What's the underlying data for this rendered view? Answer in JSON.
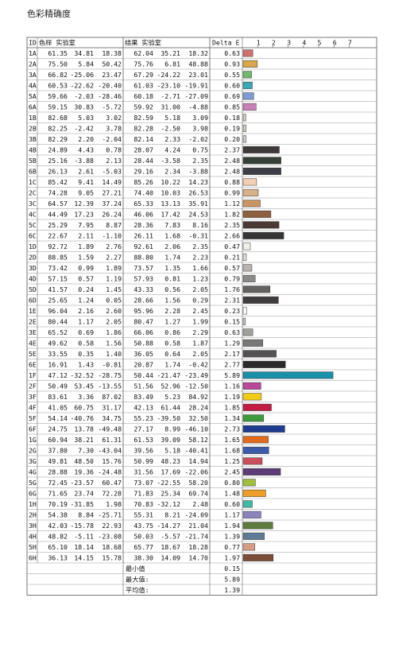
{
  "title": "色彩精确度",
  "table": {
    "col_id": "ID",
    "col_sample": "色样 实验室",
    "col_result": "结果 实验室",
    "col_delta": "Delta E",
    "footer": [
      {
        "label": "最小值",
        "value": "0.15"
      },
      {
        "label": "最大值:",
        "value": "5.89"
      },
      {
        "label": "平均值:",
        "value": "1.39"
      }
    ]
  },
  "chart_data": {
    "type": "bar",
    "orientation": "horizontal",
    "title": "",
    "xlabel": "Delta E",
    "xlim": [
      0,
      7
    ],
    "xticks": [
      "1",
      "2",
      "3",
      "4",
      "5",
      "6",
      "7"
    ],
    "rows": [
      {
        "id": "1A",
        "sample": [
          "61.35",
          "34.81",
          "18.38"
        ],
        "result": [
          "62.04",
          "35.21",
          "18.32"
        ],
        "de": 0.63,
        "color": "#d0706e"
      },
      {
        "id": "2A",
        "sample": [
          "75.50",
          "5.84",
          "50.42"
        ],
        "result": [
          "75.76",
          "6.81",
          "48.88"
        ],
        "de": 0.93,
        "color": "#d8a64c"
      },
      {
        "id": "3A",
        "sample": [
          "66.82",
          "-25.06",
          "23.47"
        ],
        "result": [
          "67.29",
          "-24.22",
          "23.01"
        ],
        "de": 0.55,
        "color": "#73b86c"
      },
      {
        "id": "4A",
        "sample": [
          "60.53",
          "-22.62",
          "-20.40"
        ],
        "result": [
          "61.03",
          "-23.10",
          "-19.91"
        ],
        "de": 0.6,
        "color": "#3aa7b5"
      },
      {
        "id": "5A",
        "sample": [
          "59.66",
          "-2.03",
          "-28.46"
        ],
        "result": [
          "60.18",
          "-2.71",
          "-27.09"
        ],
        "de": 0.69,
        "color": "#7f9bd4"
      },
      {
        "id": "6A",
        "sample": [
          "59.15",
          "30.83",
          "-5.72"
        ],
        "result": [
          "59.92",
          "31.00",
          "-4.88"
        ],
        "de": 0.85,
        "color": "#c97fb7"
      },
      {
        "id": "1B",
        "sample": [
          "82.68",
          "5.03",
          "3.02"
        ],
        "result": [
          "82.59",
          "5.18",
          "3.09"
        ],
        "de": 0.18,
        "color": "#d4cfc9"
      },
      {
        "id": "2B",
        "sample": [
          "82.25",
          "-2.42",
          "3.78"
        ],
        "result": [
          "82.28",
          "-2.50",
          "3.98"
        ],
        "de": 0.19,
        "color": "#cfd1c6"
      },
      {
        "id": "3B",
        "sample": [
          "82.29",
          "2.20",
          "-2.04"
        ],
        "result": [
          "82.14",
          "2.33",
          "-2.02"
        ],
        "de": 0.2,
        "color": "#d2cfd2"
      },
      {
        "id": "4B",
        "sample": [
          "24.89",
          "4.43",
          "0.78"
        ],
        "result": [
          "28.07",
          "4.24",
          "0.75"
        ],
        "de": 2.37,
        "color": "#3e3a3a"
      },
      {
        "id": "5B",
        "sample": [
          "25.16",
          "-3.88",
          "2.13"
        ],
        "result": [
          "28.44",
          "-3.58",
          "2.35"
        ],
        "de": 2.48,
        "color": "#364039"
      },
      {
        "id": "6B",
        "sample": [
          "26.13",
          "2.61",
          "-5.03"
        ],
        "result": [
          "29.16",
          "2.34",
          "-3.88"
        ],
        "de": 2.48,
        "color": "#3c3d46"
      },
      {
        "id": "1C",
        "sample": [
          "85.42",
          "9.41",
          "14.49"
        ],
        "result": [
          "85.26",
          "10.22",
          "14.23"
        ],
        "de": 0.88,
        "color": "#f3cfb5"
      },
      {
        "id": "2C",
        "sample": [
          "74.28",
          "9.05",
          "27.21"
        ],
        "result": [
          "74.40",
          "10.03",
          "26.53"
        ],
        "de": 0.99,
        "color": "#d8b089"
      },
      {
        "id": "3C",
        "sample": [
          "64.57",
          "12.39",
          "37.24"
        ],
        "result": [
          "65.33",
          "13.13",
          "35.91"
        ],
        "de": 1.12,
        "color": "#c99563"
      },
      {
        "id": "4C",
        "sample": [
          "44.49",
          "17.23",
          "26.24"
        ],
        "result": [
          "46.06",
          "17.42",
          "24.53"
        ],
        "de": 1.82,
        "color": "#8f6040"
      },
      {
        "id": "5C",
        "sample": [
          "25.29",
          "7.95",
          "8.87"
        ],
        "result": [
          "28.36",
          "7.83",
          "8.16"
        ],
        "de": 2.35,
        "color": "#4b3933"
      },
      {
        "id": "6C",
        "sample": [
          "22.67",
          "2.11",
          "-1.10"
        ],
        "result": [
          "26.11",
          "1.68",
          "-0.31"
        ],
        "de": 2.66,
        "color": "#353535"
      },
      {
        "id": "1D",
        "sample": [
          "92.72",
          "1.89",
          "2.76"
        ],
        "result": [
          "92.61",
          "2.06",
          "2.35"
        ],
        "de": 0.47,
        "color": "#f2f0ea"
      },
      {
        "id": "2D",
        "sample": [
          "88.85",
          "1.59",
          "2.27"
        ],
        "result": [
          "88.80",
          "1.74",
          "2.23"
        ],
        "de": 0.21,
        "color": "#e2dfda"
      },
      {
        "id": "3D",
        "sample": [
          "73.42",
          "0.99",
          "1.89"
        ],
        "result": [
          "73.57",
          "1.35",
          "1.66"
        ],
        "de": 0.57,
        "color": "#b8b5b1"
      },
      {
        "id": "4D",
        "sample": [
          "57.15",
          "0.57",
          "1.19"
        ],
        "result": [
          "57.93",
          "0.81",
          "1.23"
        ],
        "de": 0.79,
        "color": "#8c8a88"
      },
      {
        "id": "5D",
        "sample": [
          "41.57",
          "0.24",
          "1.45"
        ],
        "result": [
          "43.33",
          "0.56",
          "2.05"
        ],
        "de": 1.76,
        "color": "#646260"
      },
      {
        "id": "6D",
        "sample": [
          "25.65",
          "1.24",
          "0.05"
        ],
        "result": [
          "28.66",
          "1.56",
          "0.29"
        ],
        "de": 2.31,
        "color": "#3f3d3d"
      },
      {
        "id": "1E",
        "sample": [
          "96.04",
          "2.16",
          "2.60"
        ],
        "result": [
          "95.96",
          "2.28",
          "2.45"
        ],
        "de": 0.23,
        "color": "#fbf9f6"
      },
      {
        "id": "2E",
        "sample": [
          "80.44",
          "1.17",
          "2.05"
        ],
        "result": [
          "80.47",
          "1.27",
          "1.99"
        ],
        "de": 0.15,
        "color": "#cbc8c5"
      },
      {
        "id": "3E",
        "sample": [
          "65.52",
          "0.69",
          "1.86"
        ],
        "result": [
          "66.06",
          "0.86",
          "2.29"
        ],
        "de": 0.63,
        "color": "#a2a09d"
      },
      {
        "id": "4E",
        "sample": [
          "49.62",
          "0.58",
          "1.56"
        ],
        "result": [
          "50.88",
          "0.58",
          "1.87"
        ],
        "de": 1.29,
        "color": "#7a7876"
      },
      {
        "id": "5E",
        "sample": [
          "33.55",
          "0.35",
          "1.40"
        ],
        "result": [
          "36.05",
          "0.64",
          "2.05"
        ],
        "de": 2.17,
        "color": "#555352"
      },
      {
        "id": "6E",
        "sample": [
          "16.91",
          "1.43",
          "-0.81"
        ],
        "result": [
          "20.87",
          "1.74",
          "-0.42"
        ],
        "de": 2.77,
        "color": "#2b2a2b"
      },
      {
        "id": "1F",
        "sample": [
          "47.12",
          "-32.52",
          "-28.75"
        ],
        "result": [
          "50.44",
          "-21.47",
          "-23.49"
        ],
        "de": 5.89,
        "color": "#1a8fa8"
      },
      {
        "id": "2F",
        "sample": [
          "50.49",
          "53.45",
          "-13.55"
        ],
        "result": [
          "51.56",
          "52.96",
          "-12.50"
        ],
        "de": 1.16,
        "color": "#b9489a"
      },
      {
        "id": "3F",
        "sample": [
          "83.61",
          "3.36",
          "87.02"
        ],
        "result": [
          "83.49",
          "5.23",
          "84.92"
        ],
        "de": 1.19,
        "color": "#f2cc14"
      },
      {
        "id": "4F",
        "sample": [
          "41.05",
          "60.75",
          "31.17"
        ],
        "result": [
          "42.13",
          "61.44",
          "28.24"
        ],
        "de": 1.85,
        "color": "#c21c44"
      },
      {
        "id": "5F",
        "sample": [
          "54.14",
          "-40.76",
          "34.75"
        ],
        "result": [
          "55.23",
          "-39.50",
          "32.50"
        ],
        "de": 1.34,
        "color": "#3f9a3e"
      },
      {
        "id": "6F",
        "sample": [
          "24.75",
          "13.78",
          "-49.48"
        ],
        "result": [
          "27.17",
          "8.99",
          "-46.10"
        ],
        "de": 2.73,
        "color": "#1e3c8f"
      },
      {
        "id": "1G",
        "sample": [
          "60.94",
          "38.21",
          "61.31"
        ],
        "result": [
          "61.53",
          "39.09",
          "58.12"
        ],
        "de": 1.65,
        "color": "#e16b1f"
      },
      {
        "id": "2G",
        "sample": [
          "37.80",
          "7.30",
          "-43.04"
        ],
        "result": [
          "39.56",
          "5.18",
          "-40.41"
        ],
        "de": 1.68,
        "color": "#3c5aa8"
      },
      {
        "id": "3G",
        "sample": [
          "49.81",
          "48.50",
          "15.76"
        ],
        "result": [
          "50.99",
          "48.23",
          "14.94"
        ],
        "de": 1.25,
        "color": "#c94f5f"
      },
      {
        "id": "4G",
        "sample": [
          "28.88",
          "19.36",
          "-24.48"
        ],
        "result": [
          "31.56",
          "17.69",
          "-22.06"
        ],
        "de": 2.45,
        "color": "#5d3b76"
      },
      {
        "id": "5G",
        "sample": [
          "72.45",
          "-23.57",
          "60.47"
        ],
        "result": [
          "73.07",
          "-22.55",
          "58.20"
        ],
        "de": 0.8,
        "color": "#a1bf3c"
      },
      {
        "id": "6G",
        "sample": [
          "71.65",
          "23.74",
          "72.28"
        ],
        "result": [
          "71.83",
          "25.34",
          "69.74"
        ],
        "de": 1.48,
        "color": "#ed9e2a"
      },
      {
        "id": "1H",
        "sample": [
          "70.19",
          "-31.85",
          "1.98"
        ],
        "result": [
          "70.83",
          "-32.12",
          "2.48"
        ],
        "de": 0.6,
        "color": "#43b8a3"
      },
      {
        "id": "2H",
        "sample": [
          "54.38",
          "8.84",
          "-25.71"
        ],
        "result": [
          "55.31",
          "8.21",
          "-24.09"
        ],
        "de": 1.17,
        "color": "#8a83bc"
      },
      {
        "id": "3H",
        "sample": [
          "42.03",
          "-15.78",
          "22.93"
        ],
        "result": [
          "43.75",
          "-14.27",
          "21.04"
        ],
        "de": 1.94,
        "color": "#5e7a3c"
      },
      {
        "id": "4H",
        "sample": [
          "48.82",
          "-5.11",
          "-23.08"
        ],
        "result": [
          "50.03",
          "-5.57",
          "-21.74"
        ],
        "de": 1.39,
        "color": "#5f7c96"
      },
      {
        "id": "5H",
        "sample": [
          "65.10",
          "18.14",
          "18.68"
        ],
        "result": [
          "65.77",
          "18.67",
          "18.28"
        ],
        "de": 0.77,
        "color": "#d69d86"
      },
      {
        "id": "6H",
        "sample": [
          "36.13",
          "14.15",
          "15.78"
        ],
        "result": [
          "38.30",
          "14.09",
          "14.70"
        ],
        "de": 1.97,
        "color": "#7c4e39"
      }
    ]
  }
}
